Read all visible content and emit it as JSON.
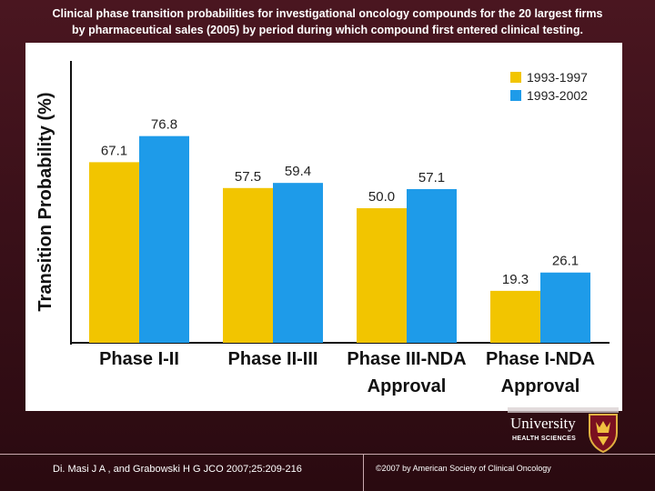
{
  "header": {
    "title_line1": "Clinical phase transition probabilities for investigational oncology compounds for the 20 largest firms",
    "title_line2": "by pharmaceutical sales (2005) by period during which compound first entered clinical testing."
  },
  "chart_data": {
    "type": "bar",
    "categories": [
      [
        "Phase I-II"
      ],
      [
        "Phase II-III"
      ],
      [
        "Phase III-NDA",
        "Approval"
      ],
      [
        "Phase I-NDA",
        "Approval"
      ]
    ],
    "series": [
      {
        "name": "1993-1997",
        "color": "#f2c500",
        "values": [
          67.1,
          57.5,
          50.0,
          19.3
        ],
        "labels": [
          "67.1",
          "57.5",
          "50.0",
          "19.3"
        ]
      },
      {
        "name": "1993-2002",
        "color": "#1e9be9",
        "values": [
          76.8,
          59.4,
          57.1,
          26.1
        ],
        "labels": [
          "76.8",
          "59.4",
          "57.1",
          "26.1"
        ]
      }
    ],
    "title": "",
    "xlabel": "",
    "ylabel": "Transition Probability (%)",
    "ylim": [
      0,
      100
    ],
    "grid": false,
    "legend": "top-right"
  },
  "logo": {
    "name": "University",
    "subtitle": "HEALTH SCIENCES"
  },
  "footer": {
    "citation": "Di. Masi J A , and Grabowski H G JCO 2007;25:209-216",
    "copyright": "©2007 by American Society of Clinical Oncology"
  }
}
